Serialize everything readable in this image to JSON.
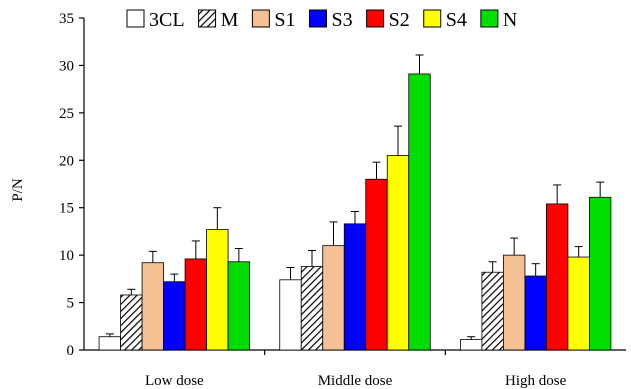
{
  "chart_data": {
    "type": "bar",
    "title": "",
    "xlabel": "",
    "ylabel": "P/N",
    "ylim": [
      0,
      35
    ],
    "yticks": [
      0,
      5,
      10,
      15,
      20,
      25,
      30,
      35
    ],
    "grid": false,
    "legend_position": "top",
    "categories": [
      "Low dose",
      "Middle dose",
      "High dose"
    ],
    "series": [
      {
        "name": "3CL",
        "color": "#ffffff",
        "fill": "solid",
        "values": [
          1.4,
          7.4,
          1.1
        ],
        "errors": [
          0.3,
          1.3,
          0.3
        ]
      },
      {
        "name": "M",
        "color": "#8c8c8c",
        "fill": "hatch",
        "values": [
          5.8,
          8.8,
          8.2
        ],
        "errors": [
          0.6,
          1.7,
          1.1
        ]
      },
      {
        "name": "S1",
        "color": "#f5c194",
        "fill": "solid",
        "values": [
          9.2,
          11.0,
          10.0
        ],
        "errors": [
          1.2,
          2.5,
          1.8
        ]
      },
      {
        "name": "S3",
        "color": "#0000ff",
        "fill": "solid",
        "values": [
          7.2,
          13.3,
          7.8
        ],
        "errors": [
          0.8,
          1.3,
          1.3
        ]
      },
      {
        "name": "S2",
        "color": "#ff0000",
        "fill": "solid",
        "values": [
          9.6,
          18.0,
          15.4
        ],
        "errors": [
          1.9,
          1.8,
          2.0
        ]
      },
      {
        "name": "S4",
        "color": "#ffff00",
        "fill": "solid",
        "values": [
          12.7,
          20.5,
          9.8
        ],
        "errors": [
          2.3,
          3.1,
          1.1
        ]
      },
      {
        "name": "N",
        "color": "#00dd00",
        "fill": "solid",
        "values": [
          9.3,
          29.1,
          16.1
        ],
        "errors": [
          1.4,
          2.0,
          1.6
        ]
      }
    ]
  }
}
